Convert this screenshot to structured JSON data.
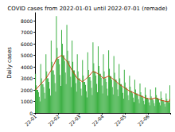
{
  "chart_data": {
    "type": "bar",
    "title": "COVID cases from 2022-01-01 until 2022-07-01 (remade)",
    "y_label": "Daily cases",
    "categories": [
      "22-01",
      null,
      null,
      null,
      null,
      null,
      null,
      null,
      null,
      null,
      null,
      null,
      null,
      null,
      null,
      null,
      null,
      null,
      null,
      null,
      null,
      null,
      null,
      null,
      null,
      null,
      null,
      null,
      null,
      null,
      null,
      "22-02",
      null,
      null,
      null,
      null,
      null,
      null,
      null,
      null,
      null,
      null,
      null,
      null,
      null,
      null,
      null,
      null,
      null,
      null,
      null,
      null,
      null,
      null,
      null,
      null,
      null,
      null,
      null,
      "22-03",
      null,
      null,
      null,
      null,
      null,
      null,
      null,
      null,
      null,
      null,
      null,
      null,
      null,
      null,
      null,
      null,
      null,
      null,
      null,
      null,
      null,
      null,
      null,
      null,
      null,
      null,
      null,
      null,
      null,
      null,
      "22-04",
      null,
      null,
      null,
      null,
      null,
      null,
      null,
      null,
      null,
      null,
      null,
      null,
      null,
      null,
      null,
      null,
      null,
      null,
      null,
      null,
      null,
      null,
      null,
      null,
      null,
      null,
      null,
      null,
      null,
      "22-05",
      null,
      null,
      null,
      null,
      null,
      null,
      null,
      null,
      null,
      null,
      null,
      null,
      null,
      null,
      null,
      null,
      null,
      null,
      null,
      null,
      null,
      null,
      null,
      null,
      null,
      null,
      null,
      null,
      null,
      null,
      "22-06",
      null,
      null,
      null,
      null,
      null,
      null,
      null,
      null,
      null,
      null,
      null,
      null,
      null,
      null,
      null,
      null,
      null,
      null,
      null,
      null,
      null,
      null,
      null,
      null,
      null,
      null,
      null,
      null,
      null
    ],
    "series": [
      {
        "type": "bar",
        "color": "#3cb043",
        "values": [
          3400,
          2400,
          2000,
          2000,
          1800,
          1400,
          1000,
          4250,
          3000,
          2500,
          2500,
          2250,
          1750,
          1250,
          5100,
          3600,
          3000,
          3000,
          2700,
          2100,
          1500,
          6290,
          4440,
          3700,
          3700,
          3330,
          2590,
          1850,
          8400,
          5640,
          4700,
          4700,
          4230,
          3290,
          2350,
          7200,
          6000,
          5000,
          5000,
          4500,
          3500,
          2500,
          7650,
          5400,
          4500,
          4500,
          4050,
          3150,
          2250,
          6290,
          4440,
          3700,
          3700,
          3330,
          2590,
          1850,
          5100,
          3600,
          3000,
          3000,
          2700,
          2100,
          1500,
          4590,
          3240,
          2700,
          2700,
          2430,
          1890,
          1350,
          5270,
          3720,
          3100,
          3100,
          2790,
          2170,
          1550,
          6120,
          4320,
          3600,
          3600,
          3240,
          2520,
          1800,
          5780,
          4080,
          3400,
          3400,
          3060,
          2380,
          1700,
          5100,
          3600,
          3000,
          3000,
          2700,
          2100,
          1500,
          5440,
          3840,
          3200,
          3200,
          2880,
          2240,
          1600,
          4930,
          3480,
          2900,
          2900,
          2610,
          2030,
          1450,
          4250,
          3000,
          2500,
          2500,
          2250,
          1750,
          1250,
          3740,
          2640,
          2200,
          2200,
          1980,
          1540,
          1100,
          3230,
          2280,
          1900,
          1900,
          1710,
          1330,
          950,
          2890,
          2040,
          1700,
          1700,
          1530,
          1190,
          850,
          2550,
          1800,
          1500,
          1500,
          1350,
          1050,
          750,
          2210,
          1560,
          1300,
          1300,
          1170,
          910,
          650,
          2040,
          1440,
          1200,
          1200,
          1080,
          840,
          600,
          2210,
          1560,
          1300,
          1300,
          1170,
          910,
          650,
          1870,
          1320,
          1100,
          1100,
          990,
          770,
          550,
          1700,
          1200,
          1000,
          1000,
          900,
          2400
        ]
      },
      {
        "type": "line",
        "color": "#cc3300",
        "values": [
          2000,
          2070,
          2140,
          2210,
          2290,
          2360,
          2430,
          2500,
          2570,
          2640,
          2710,
          2790,
          2860,
          2930,
          3000,
          3100,
          3200,
          3300,
          3400,
          3500,
          3600,
          3700,
          3840,
          3990,
          4130,
          4270,
          4410,
          4560,
          4700,
          4740,
          4790,
          4830,
          4870,
          4910,
          4960,
          5000,
          4930,
          4860,
          4790,
          4710,
          4640,
          4570,
          4500,
          4390,
          4270,
          4160,
          4040,
          3930,
          3810,
          3700,
          3600,
          3500,
          3400,
          3300,
          3200,
          3100,
          3000,
          2960,
          2910,
          2870,
          2830,
          2790,
          2740,
          2700,
          2760,
          2810,
          2870,
          2930,
          2990,
          3040,
          3100,
          3170,
          3240,
          3310,
          3390,
          3460,
          3530,
          3600,
          3570,
          3540,
          3510,
          3490,
          3460,
          3430,
          3400,
          3340,
          3290,
          3230,
          3170,
          3110,
          3060,
          3000,
          3030,
          3060,
          3090,
          3110,
          3140,
          3170,
          3200,
          3160,
          3110,
          3070,
          3030,
          2990,
          2940,
          2900,
          2840,
          2790,
          2730,
          2670,
          2610,
          2560,
          2500,
          2460,
          2410,
          2370,
          2330,
          2290,
          2240,
          2200,
          2160,
          2110,
          2070,
          2030,
          1990,
          1940,
          1900,
          1870,
          1840,
          1810,
          1790,
          1760,
          1730,
          1700,
          1670,
          1640,
          1610,
          1590,
          1560,
          1530,
          1500,
          1470,
          1440,
          1410,
          1390,
          1360,
          1330,
          1300,
          1290,
          1270,
          1260,
          1240,
          1230,
          1210,
          1200,
          1210,
          1230,
          1240,
          1260,
          1270,
          1290,
          1300,
          1270,
          1240,
          1210,
          1190,
          1160,
          1130,
          1100,
          1090,
          1070,
          1060,
          1040,
          1030,
          1010,
          1000,
          990,
          980,
          980,
          990,
          1200
        ]
      }
    ],
    "ylim": [
      0,
      8700
    ],
    "yticks": [
      0,
      1000,
      2000,
      3000,
      4000,
      5000,
      6000,
      7000,
      8000
    ],
    "grid": false
  }
}
